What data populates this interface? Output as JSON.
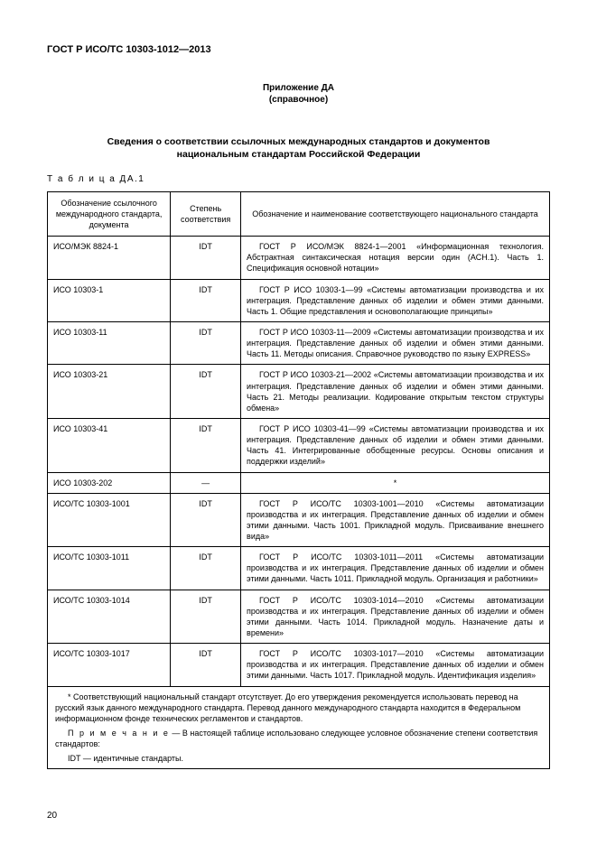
{
  "doc_code": "ГОСТ Р ИСО/ТС 10303-1012—2013",
  "appendix_label": "Приложение ДА",
  "appendix_sub": "(справочное)",
  "main_title_line1": "Сведения о соответствии ссылочных международных стандартов и документов",
  "main_title_line2": "национальным стандартам Российской Федерации",
  "table_label": "Т а б л и ц а  ДА.1",
  "columns": {
    "c1": "Обозначение ссылочного международного стандарта, документа",
    "c2": "Степень соответствия",
    "c3": "Обозначение и наименование соответствующего национального стандарта"
  },
  "rows": [
    {
      "c1": "ИСО/МЭК 8824-1",
      "c2": "IDT",
      "c3": "ГОСТ Р ИСО/МЭК 8824-1—2001 «Информационная технология. Абстрактная синтаксическая нотация версии один (АСН.1). Часть 1. Спецификация основной нотации»"
    },
    {
      "c1": "ИСО 10303-1",
      "c2": "IDT",
      "c3": "ГОСТ Р ИСО 10303-1—99 «Системы автоматизации производства и их интеграция. Представление данных об изделии и обмен этими данными. Часть 1. Общие представления и основополагающие принципы»"
    },
    {
      "c1": "ИСО 10303-11",
      "c2": "IDT",
      "c3": "ГОСТ Р ИСО 10303-11—2009 «Системы автоматизации производства и их интеграция. Представление данных об изделии и обмен этими данными. Часть 11. Методы описания. Справочное руководство по языку EXPRESS»"
    },
    {
      "c1": "ИСО 10303-21",
      "c2": "IDT",
      "c3": "ГОСТ Р ИСО 10303-21—2002 «Системы автоматизации производства и их интеграция. Представление данных об изделии и обмен этими данными. Часть 21. Методы реализации. Кодирование открытым текстом структуры обмена»"
    },
    {
      "c1": "ИСО 10303-41",
      "c2": "IDT",
      "c3": "ГОСТ Р ИСО 10303-41—99 «Системы автоматизации производства и их интеграция. Представление данных об изделии и обмен этими данными. Часть 41. Интегрированные обобщенные ресурсы. Основы описания и поддержки изделий»"
    },
    {
      "c1": "ИСО 10303-202",
      "c2": "—",
      "c3": "*",
      "star": true
    },
    {
      "c1": "ИСО/ТС 10303-1001",
      "c2": "IDT",
      "c3": "ГОСТ Р ИСО/ТС 10303-1001—2010 «Системы автоматизации производства и их интеграция. Представление данных об изделии и обмен этими данными. Часть 1001. Прикладной модуль. Присваивание внешнего вида»"
    },
    {
      "c1": "ИСО/ТС 10303-1011",
      "c2": "IDT",
      "c3": "ГОСТ Р ИСО/ТС 10303-1011—2011 «Системы автоматизации производства и их интеграция. Представление данных об изделии и обмен этими данными. Часть 1011. Прикладной модуль. Организация и работники»"
    },
    {
      "c1": "ИСО/ТС 10303-1014",
      "c2": "IDT",
      "c3": "ГОСТ Р ИСО/ТС 10303-1014—2010 «Системы автоматизации производства и их интеграция. Представление данных об изделии и обмен этими данными. Часть 1014. Прикладной модуль. Назначение даты и времени»"
    },
    {
      "c1": "ИСО/ТС 10303-1017",
      "c2": "IDT",
      "c3": "ГОСТ Р ИСО/ТС 10303-1017—2010 «Системы автоматизации производства и их интеграция. Представление данных об изделии и обмен этими данными. Часть 1017. Прикладной модуль. Идентификация изделия»"
    }
  ],
  "footnote": {
    "p1": "* Соответствующий национальный стандарт отсутствует. До его утверждения рекомендуется использовать перевод на русский язык данного международного стандарта. Перевод данного международного стандарта находится в Федеральном информационном фонде технических регламентов и стандартов.",
    "note_label": "П р и м е ч а н и е",
    "note_text": " — В настоящей таблице использовано следующее условное обозначение степени соответствия стандартов:",
    "idt": "IDT — идентичные стандарты."
  },
  "page_number": "20"
}
